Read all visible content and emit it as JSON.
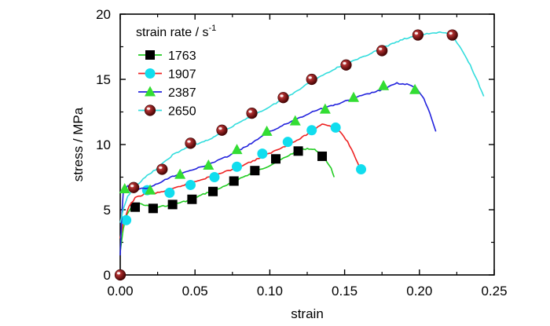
{
  "chart_data": {
    "type": "scatter",
    "xlabel": "strain",
    "ylabel": "stress / MPa",
    "xlim": [
      0,
      0.25
    ],
    "ylim": [
      0,
      20
    ],
    "x_ticks": [
      "0.00",
      "0.05",
      "0.10",
      "0.15",
      "0.20",
      "0.25"
    ],
    "y_ticks": [
      "0",
      "5",
      "10",
      "15",
      "20"
    ],
    "legend": {
      "title_main": "strain rate / s",
      "title_sup": "-1",
      "position": "top-left"
    },
    "series": [
      {
        "name": "1763",
        "line_color": "#22cc22",
        "marker": "square",
        "marker_color": "#000000",
        "line": [
          [
            0.0,
            1.8
          ],
          [
            0.002,
            3.5
          ],
          [
            0.004,
            4.5
          ],
          [
            0.007,
            5.1
          ],
          [
            0.012,
            5.5
          ],
          [
            0.018,
            5.3
          ],
          [
            0.025,
            5.2
          ],
          [
            0.035,
            5.4
          ],
          [
            0.045,
            5.7
          ],
          [
            0.058,
            6.3
          ],
          [
            0.07,
            6.8
          ],
          [
            0.08,
            7.4
          ],
          [
            0.09,
            7.9
          ],
          [
            0.1,
            8.4
          ],
          [
            0.11,
            9.0
          ],
          [
            0.118,
            9.5
          ],
          [
            0.125,
            9.7
          ],
          [
            0.13,
            9.6
          ],
          [
            0.135,
            9.3
          ],
          [
            0.138,
            8.7
          ],
          [
            0.141,
            8.2
          ],
          [
            0.143,
            7.5
          ]
        ],
        "markers": [
          [
            0.01,
            5.2
          ],
          [
            0.022,
            5.1
          ],
          [
            0.035,
            5.4
          ],
          [
            0.048,
            5.8
          ],
          [
            0.062,
            6.4
          ],
          [
            0.076,
            7.2
          ],
          [
            0.09,
            8.0
          ],
          [
            0.104,
            8.9
          ],
          [
            0.119,
            9.5
          ],
          [
            0.135,
            9.1
          ]
        ]
      },
      {
        "name": "1907",
        "line_color": "#ee2222",
        "marker": "circle",
        "marker_color": "#11ddee",
        "line": [
          [
            0.0,
            2.8
          ],
          [
            0.002,
            4.0
          ],
          [
            0.004,
            4.6
          ],
          [
            0.006,
            5.3
          ],
          [
            0.01,
            5.9
          ],
          [
            0.016,
            6.2
          ],
          [
            0.025,
            6.3
          ],
          [
            0.035,
            6.6
          ],
          [
            0.048,
            7.1
          ],
          [
            0.062,
            7.6
          ],
          [
            0.075,
            8.1
          ],
          [
            0.09,
            8.8
          ],
          [
            0.105,
            9.6
          ],
          [
            0.118,
            10.3
          ],
          [
            0.128,
            11.0
          ],
          [
            0.135,
            11.6
          ],
          [
            0.141,
            11.4
          ],
          [
            0.147,
            11.0
          ],
          [
            0.152,
            10.2
          ],
          [
            0.156,
            9.3
          ],
          [
            0.159,
            8.5
          ],
          [
            0.161,
            8.1
          ]
        ],
        "markers": [
          [
            0.004,
            4.2
          ],
          [
            0.018,
            6.5
          ],
          [
            0.033,
            6.3
          ],
          [
            0.047,
            6.9
          ],
          [
            0.063,
            7.5
          ],
          [
            0.078,
            8.3
          ],
          [
            0.095,
            9.3
          ],
          [
            0.112,
            10.2
          ],
          [
            0.128,
            11.1
          ],
          [
            0.144,
            11.3
          ],
          [
            0.161,
            8.1
          ]
        ]
      },
      {
        "name": "2387",
        "line_color": "#2222dd",
        "marker": "triangle",
        "marker_color": "#33dd33",
        "line": [
          [
            0.0,
            1.5
          ],
          [
            0.001,
            4.5
          ],
          [
            0.002,
            6.3
          ],
          [
            0.005,
            6.8
          ],
          [
            0.012,
            6.6
          ],
          [
            0.02,
            6.7
          ],
          [
            0.03,
            7.3
          ],
          [
            0.04,
            7.8
          ],
          [
            0.055,
            8.3
          ],
          [
            0.07,
            9.0
          ],
          [
            0.085,
            9.9
          ],
          [
            0.1,
            11.0
          ],
          [
            0.115,
            11.8
          ],
          [
            0.13,
            12.6
          ],
          [
            0.145,
            13.1
          ],
          [
            0.16,
            13.7
          ],
          [
            0.175,
            14.2
          ],
          [
            0.185,
            14.7
          ],
          [
            0.193,
            14.6
          ],
          [
            0.198,
            14.3
          ],
          [
            0.203,
            13.5
          ],
          [
            0.207,
            12.4
          ],
          [
            0.211,
            11.0
          ]
        ],
        "markers": [
          [
            0.003,
            6.6
          ],
          [
            0.02,
            6.5
          ],
          [
            0.04,
            7.7
          ],
          [
            0.059,
            8.4
          ],
          [
            0.078,
            9.6
          ],
          [
            0.098,
            11.0
          ],
          [
            0.117,
            11.8
          ],
          [
            0.137,
            12.7
          ],
          [
            0.156,
            13.6
          ],
          [
            0.176,
            14.5
          ],
          [
            0.197,
            14.2
          ]
        ]
      },
      {
        "name": "2650",
        "line_color": "#33dddd",
        "marker": "sphere",
        "marker_color": "#8b1010",
        "line": [
          [
            0.0,
            4.0
          ],
          [
            0.002,
            5.0
          ],
          [
            0.005,
            6.0
          ],
          [
            0.01,
            6.8
          ],
          [
            0.018,
            7.6
          ],
          [
            0.025,
            8.2
          ],
          [
            0.035,
            9.2
          ],
          [
            0.045,
            9.8
          ],
          [
            0.06,
            10.4
          ],
          [
            0.07,
            11.1
          ],
          [
            0.085,
            12.0
          ],
          [
            0.1,
            12.9
          ],
          [
            0.115,
            13.9
          ],
          [
            0.13,
            15.0
          ],
          [
            0.145,
            15.9
          ],
          [
            0.16,
            16.6
          ],
          [
            0.175,
            17.4
          ],
          [
            0.19,
            18.1
          ],
          [
            0.205,
            18.5
          ],
          [
            0.215,
            18.6
          ],
          [
            0.222,
            18.4
          ],
          [
            0.228,
            17.3
          ],
          [
            0.234,
            16.1
          ],
          [
            0.239,
            14.8
          ],
          [
            0.243,
            13.7
          ]
        ],
        "markers": [
          [
            0.0,
            0.0
          ],
          [
            0.009,
            6.7
          ],
          [
            0.028,
            8.1
          ],
          [
            0.047,
            10.1
          ],
          [
            0.068,
            11.1
          ],
          [
            0.088,
            12.4
          ],
          [
            0.109,
            13.6
          ],
          [
            0.128,
            15.0
          ],
          [
            0.151,
            16.1
          ],
          [
            0.175,
            17.2
          ],
          [
            0.199,
            18.4
          ],
          [
            0.222,
            18.4
          ]
        ]
      }
    ]
  }
}
